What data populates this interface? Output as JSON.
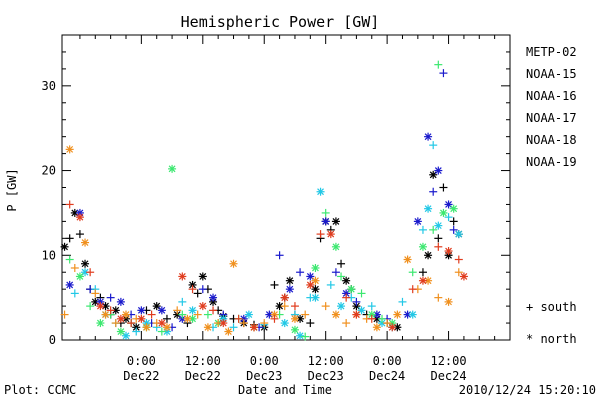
{
  "chart_data": {
    "type": "scatter",
    "title": "Hemispheric Power [GW]",
    "ylabel": "P [GW]",
    "xlabel": "Date and Time",
    "footer_left": "Plot: CCMC",
    "footer_right": "2010/12/24 15:20:10",
    "ylim": [
      0,
      36
    ],
    "xlim_hours": [
      -15.5,
      72
    ],
    "y_ticks": [
      0,
      10,
      20,
      30
    ],
    "x_ticks": [
      {
        "t": 0,
        "top": "0:00",
        "bottom": "Dec22"
      },
      {
        "t": 12,
        "top": "12:00",
        "bottom": "Dec22"
      },
      {
        "t": 24,
        "top": "0:00",
        "bottom": "Dec23"
      },
      {
        "t": 36,
        "top": "12:00",
        "bottom": "Dec23"
      },
      {
        "t": 48,
        "top": "0:00",
        "bottom": "Dec24"
      },
      {
        "t": 60,
        "top": "12:00",
        "bottom": "Dec24"
      }
    ],
    "legend": [
      {
        "name": "METP-02",
        "color": "#000000"
      },
      {
        "name": "NOAA-15",
        "color": "#1a1acc"
      },
      {
        "name": "NOAA-16",
        "color": "#22c8e6"
      },
      {
        "name": "NOAA-17",
        "color": "#3ce870"
      },
      {
        "name": "NOAA-18",
        "color": "#f0901e"
      },
      {
        "name": "NOAA-19",
        "color": "#e03c1e"
      }
    ],
    "marker_legend": [
      {
        "symbol": "+",
        "label": "south"
      },
      {
        "symbol": "*",
        "label": "north"
      }
    ],
    "series": [
      {
        "name": "METP-02",
        "color": "#000000",
        "points": [
          [
            -15,
            11,
            "*"
          ],
          [
            -14,
            12,
            "+"
          ],
          [
            -13,
            15,
            "*"
          ],
          [
            -12,
            12.5,
            "+"
          ],
          [
            -11,
            9,
            "*"
          ],
          [
            -10,
            6,
            "+"
          ],
          [
            -9,
            4.5,
            "*"
          ],
          [
            -8,
            5,
            "+"
          ],
          [
            -7,
            4,
            "*"
          ],
          [
            -6,
            3,
            "+"
          ],
          [
            -5,
            3.5,
            "*"
          ],
          [
            -4,
            2,
            "+"
          ],
          [
            -3,
            2.5,
            "*"
          ],
          [
            -2,
            2,
            "+"
          ],
          [
            -1,
            1.5,
            "*"
          ],
          [
            1,
            3.5,
            "+"
          ],
          [
            3,
            4,
            "*"
          ],
          [
            5,
            2.5,
            "+"
          ],
          [
            7,
            3,
            "*"
          ],
          [
            9,
            2,
            "+"
          ],
          [
            10,
            6.5,
            "*"
          ],
          [
            11,
            5.5,
            "+"
          ],
          [
            12,
            7.5,
            "*"
          ],
          [
            13,
            6,
            "+"
          ],
          [
            14,
            4.5,
            "*"
          ],
          [
            15,
            3.5,
            "+"
          ],
          [
            16,
            2.8,
            "*"
          ],
          [
            18,
            2.5,
            "+"
          ],
          [
            20,
            2,
            "*"
          ],
          [
            22,
            1.8,
            "+"
          ],
          [
            24,
            1.5,
            "*"
          ],
          [
            26,
            6.5,
            "+"
          ],
          [
            27,
            4,
            "*"
          ],
          [
            28,
            5,
            "+"
          ],
          [
            29,
            7,
            "*"
          ],
          [
            30,
            3,
            "+"
          ],
          [
            31,
            2.5,
            "*"
          ],
          [
            33,
            2,
            "+"
          ],
          [
            34,
            6,
            "*"
          ],
          [
            35,
            12,
            "+"
          ],
          [
            36,
            14,
            "*"
          ],
          [
            37,
            13,
            "+"
          ],
          [
            38,
            14,
            "*"
          ],
          [
            39,
            9,
            "+"
          ],
          [
            40,
            7,
            "*"
          ],
          [
            41,
            6,
            "+"
          ],
          [
            42,
            4,
            "*"
          ],
          [
            44,
            3,
            "+"
          ],
          [
            46,
            2.5,
            "*"
          ],
          [
            48,
            2,
            "+"
          ],
          [
            50,
            1.5,
            "*"
          ],
          [
            55,
            8,
            "+"
          ],
          [
            56,
            10,
            "*"
          ],
          [
            57,
            19.5,
            "*"
          ],
          [
            58,
            12,
            "+"
          ],
          [
            59,
            18,
            "+"
          ],
          [
            60,
            10,
            "*"
          ],
          [
            61,
            14,
            "+"
          ],
          [
            62,
            12.5,
            "*"
          ]
        ]
      },
      {
        "name": "NOAA-15",
        "color": "#1a1acc",
        "points": [
          [
            -14,
            6.5,
            "*"
          ],
          [
            -12,
            15,
            "*"
          ],
          [
            -10,
            6,
            "+"
          ],
          [
            -8,
            4.5,
            "*"
          ],
          [
            -6,
            5,
            "+"
          ],
          [
            -4,
            4.5,
            "*"
          ],
          [
            -2,
            3,
            "+"
          ],
          [
            0,
            3.5,
            "*"
          ],
          [
            2,
            2,
            "+"
          ],
          [
            4,
            3.5,
            "*"
          ],
          [
            6,
            1.5,
            "+"
          ],
          [
            8,
            2.5,
            "*"
          ],
          [
            12,
            6,
            "+"
          ],
          [
            14,
            5,
            "*"
          ],
          [
            16,
            3,
            "+"
          ],
          [
            20,
            2.5,
            "*"
          ],
          [
            23,
            1.5,
            "+"
          ],
          [
            25,
            3,
            "*"
          ],
          [
            27,
            10,
            "+"
          ],
          [
            29,
            6,
            "*"
          ],
          [
            31,
            8,
            "+"
          ],
          [
            33,
            7.5,
            "*"
          ],
          [
            36,
            14,
            "*"
          ],
          [
            38,
            8,
            "+"
          ],
          [
            40,
            5.5,
            "*"
          ],
          [
            42,
            4.5,
            "+"
          ],
          [
            46,
            3,
            "*"
          ],
          [
            48,
            2.5,
            "+"
          ],
          [
            52,
            3,
            "*"
          ],
          [
            54,
            14,
            "*"
          ],
          [
            56,
            24,
            "*"
          ],
          [
            57,
            17.5,
            "+"
          ],
          [
            58,
            20,
            "*"
          ],
          [
            59,
            31.5,
            "+"
          ],
          [
            60,
            16,
            "*"
          ],
          [
            61,
            13,
            "+"
          ]
        ]
      },
      {
        "name": "NOAA-16",
        "color": "#22c8e6",
        "points": [
          [
            -13,
            5.5,
            "+"
          ],
          [
            -11,
            8,
            "*"
          ],
          [
            -9,
            6,
            "+"
          ],
          [
            -7,
            3,
            "*"
          ],
          [
            -5,
            2,
            "+"
          ],
          [
            -3,
            0.5,
            "*"
          ],
          [
            -1,
            1,
            "+"
          ],
          [
            1,
            2,
            "*"
          ],
          [
            3,
            1.5,
            "+"
          ],
          [
            5,
            1,
            "*"
          ],
          [
            8,
            4.5,
            "+"
          ],
          [
            10,
            3.5,
            "*"
          ],
          [
            14,
            1.5,
            "+"
          ],
          [
            16,
            2.5,
            "*"
          ],
          [
            18,
            1.5,
            "+"
          ],
          [
            21,
            3,
            "*"
          ],
          [
            24,
            1.8,
            "+"
          ],
          [
            28,
            2,
            "*"
          ],
          [
            30,
            3,
            "+"
          ],
          [
            31,
            0.5,
            "*"
          ],
          [
            33,
            5,
            "+"
          ],
          [
            34,
            5,
            "*"
          ],
          [
            35,
            17.5,
            "*"
          ],
          [
            37,
            6.5,
            "+"
          ],
          [
            39,
            4,
            "*"
          ],
          [
            41,
            5,
            "+"
          ],
          [
            43,
            3.5,
            "*"
          ],
          [
            45,
            4,
            "+"
          ],
          [
            47,
            2,
            "*"
          ],
          [
            49,
            1.5,
            "+"
          ],
          [
            51,
            4.5,
            "+"
          ],
          [
            53,
            3,
            "*"
          ],
          [
            55,
            13,
            "+"
          ],
          [
            56,
            15.5,
            "*"
          ],
          [
            57,
            23,
            "+"
          ],
          [
            58,
            13.5,
            "*"
          ],
          [
            60,
            14.5,
            "+"
          ],
          [
            62,
            12.5,
            "*"
          ]
        ]
      },
      {
        "name": "NOAA-17",
        "color": "#3ce870",
        "points": [
          [
            -14,
            9.5,
            "+"
          ],
          [
            -12,
            7.5,
            "*"
          ],
          [
            -10,
            4,
            "+"
          ],
          [
            -8,
            2,
            "*"
          ],
          [
            -6,
            3,
            "+"
          ],
          [
            -4,
            1,
            "*"
          ],
          [
            -2,
            2,
            "+"
          ],
          [
            1,
            1.5,
            "*"
          ],
          [
            4,
            1,
            "+"
          ],
          [
            6,
            20.2,
            "*"
          ],
          [
            8,
            3,
            "+"
          ],
          [
            10,
            2.5,
            "*"
          ],
          [
            13,
            3,
            "+"
          ],
          [
            15,
            2,
            "*"
          ],
          [
            19,
            2.5,
            "+"
          ],
          [
            22,
            1.5,
            "*"
          ],
          [
            27,
            3,
            "+"
          ],
          [
            30,
            1.2,
            "*"
          ],
          [
            32,
            0.4,
            "+"
          ],
          [
            34,
            8.5,
            "*"
          ],
          [
            36,
            15,
            "+"
          ],
          [
            38,
            11,
            "*"
          ],
          [
            39,
            7.5,
            "+"
          ],
          [
            41,
            6,
            "*"
          ],
          [
            43,
            5.5,
            "+"
          ],
          [
            45,
            3,
            "*"
          ],
          [
            47,
            2.5,
            "+"
          ],
          [
            49,
            2,
            "*"
          ],
          [
            53,
            8,
            "+"
          ],
          [
            55,
            11,
            "*"
          ],
          [
            57,
            13,
            "+"
          ],
          [
            58,
            32.5,
            "+"
          ],
          [
            59,
            15,
            "*"
          ],
          [
            61,
            15.5,
            "*"
          ]
        ]
      },
      {
        "name": "NOAA-18",
        "color": "#f0901e",
        "points": [
          [
            -15,
            3,
            "+"
          ],
          [
            -14,
            22.5,
            "*"
          ],
          [
            -13,
            8.5,
            "+"
          ],
          [
            -11,
            11.5,
            "*"
          ],
          [
            -9,
            5.5,
            "+"
          ],
          [
            -7,
            3,
            "*"
          ],
          [
            -5,
            2,
            "+"
          ],
          [
            -3,
            3,
            "*"
          ],
          [
            -1,
            2.5,
            "+"
          ],
          [
            1,
            1.5,
            "*"
          ],
          [
            3,
            2,
            "+"
          ],
          [
            5,
            1.5,
            "*"
          ],
          [
            7,
            3.5,
            "+"
          ],
          [
            9,
            2.5,
            "*"
          ],
          [
            11,
            3,
            "+"
          ],
          [
            13,
            1.5,
            "*"
          ],
          [
            15,
            2,
            "+"
          ],
          [
            17,
            1,
            "*"
          ],
          [
            18,
            9,
            "*"
          ],
          [
            20,
            2,
            "+"
          ],
          [
            22,
            1.5,
            "*"
          ],
          [
            24,
            2,
            "+"
          ],
          [
            26,
            3,
            "*"
          ],
          [
            28,
            4,
            "+"
          ],
          [
            30,
            2.5,
            "*"
          ],
          [
            32,
            3,
            "+"
          ],
          [
            34,
            7,
            "*"
          ],
          [
            36,
            4,
            "+"
          ],
          [
            38,
            3,
            "*"
          ],
          [
            40,
            2,
            "+"
          ],
          [
            42,
            3,
            "*"
          ],
          [
            44,
            2.5,
            "+"
          ],
          [
            46,
            1.5,
            "*"
          ],
          [
            48,
            2,
            "+"
          ],
          [
            50,
            3,
            "*"
          ],
          [
            52,
            9.5,
            "*"
          ],
          [
            54,
            6,
            "+"
          ],
          [
            56,
            7,
            "*"
          ],
          [
            58,
            5,
            "+"
          ],
          [
            60,
            4.5,
            "*"
          ],
          [
            62,
            8,
            "+"
          ]
        ]
      },
      {
        "name": "NOAA-19",
        "color": "#e03c1e",
        "points": [
          [
            -14,
            16,
            "+"
          ],
          [
            -12,
            14.5,
            "*"
          ],
          [
            -10,
            8,
            "+"
          ],
          [
            -8,
            4,
            "*"
          ],
          [
            -6,
            3.5,
            "+"
          ],
          [
            -4,
            2.5,
            "*"
          ],
          [
            -2,
            2,
            "+"
          ],
          [
            0,
            2.5,
            "*"
          ],
          [
            2,
            3,
            "+"
          ],
          [
            4,
            2,
            "*"
          ],
          [
            8,
            7.5,
            "*"
          ],
          [
            10,
            6,
            "+"
          ],
          [
            12,
            4,
            "*"
          ],
          [
            14,
            3.5,
            "+"
          ],
          [
            16,
            2,
            "*"
          ],
          [
            19,
            2.5,
            "+"
          ],
          [
            22,
            1.5,
            "*"
          ],
          [
            26,
            2.5,
            "+"
          ],
          [
            28,
            5,
            "*"
          ],
          [
            30,
            4,
            "+"
          ],
          [
            33,
            6.5,
            "*"
          ],
          [
            35,
            12.5,
            "+"
          ],
          [
            37,
            12.5,
            "*"
          ],
          [
            40,
            5,
            "+"
          ],
          [
            42,
            3,
            "*"
          ],
          [
            45,
            2.5,
            "+"
          ],
          [
            49,
            1.5,
            "*"
          ],
          [
            53,
            6,
            "+"
          ],
          [
            55,
            7,
            "*"
          ],
          [
            58,
            11,
            "+"
          ],
          [
            60,
            10.5,
            "*"
          ],
          [
            62,
            9.5,
            "+"
          ],
          [
            63,
            7.5,
            "*"
          ]
        ]
      }
    ]
  }
}
